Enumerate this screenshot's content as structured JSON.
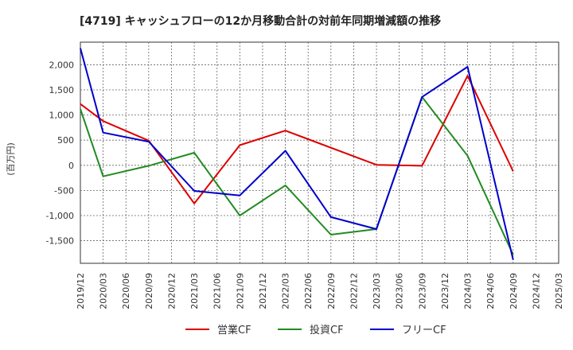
{
  "chart_data": {
    "type": "line",
    "title": "[4719]  キャッシュフローの12か月移動合計の対前年同期増減額の推移",
    "ylabel": "(百万円)",
    "xlabel": "",
    "ylim": [
      -1950,
      2450
    ],
    "yticks": [
      2000,
      1500,
      1000,
      500,
      0,
      -500,
      -1000,
      -1500
    ],
    "ytick_labels": [
      "2,000",
      "1,500",
      "1,000",
      "500",
      "0",
      "-500",
      "-1,000",
      "-1,500"
    ],
    "x_ticks": [
      "2019/12",
      "2020/03",
      "2020/06",
      "2020/09",
      "2020/12",
      "2021/03",
      "2021/06",
      "2021/09",
      "2021/12",
      "2022/03",
      "2022/06",
      "2022/09",
      "2022/12",
      "2023/03",
      "2023/06",
      "2023/09",
      "2023/12",
      "2024/03",
      "2024/06",
      "2024/09",
      "2024/12",
      "2025/03"
    ],
    "grid": true,
    "series": [
      {
        "name": "営業CF",
        "color": "#dd0000",
        "points": [
          [
            "2019/12",
            1220
          ],
          [
            "2020/03",
            880
          ],
          [
            "2020/09",
            490
          ],
          [
            "2021/03",
            -760
          ],
          [
            "2021/09",
            400
          ],
          [
            "2022/03",
            690
          ],
          [
            "2023/03",
            10
          ],
          [
            "2023/09",
            -10
          ],
          [
            "2024/03",
            1780
          ],
          [
            "2024/09",
            -120
          ]
        ]
      },
      {
        "name": "投資CF",
        "color": "#228b22",
        "points": [
          [
            "2019/12",
            1120
          ],
          [
            "2020/03",
            -220
          ],
          [
            "2020/09",
            -10
          ],
          [
            "2021/03",
            250
          ],
          [
            "2021/09",
            -1000
          ],
          [
            "2022/03",
            -400
          ],
          [
            "2022/09",
            -1380
          ],
          [
            "2023/03",
            -1270
          ],
          [
            "2023/09",
            1360
          ],
          [
            "2024/03",
            190
          ],
          [
            "2024/09",
            -1780
          ]
        ]
      },
      {
        "name": "フリーCF",
        "color": "#0000cc",
        "points": [
          [
            "2019/12",
            2330
          ],
          [
            "2020/03",
            650
          ],
          [
            "2020/09",
            470
          ],
          [
            "2021/03",
            -510
          ],
          [
            "2021/09",
            -600
          ],
          [
            "2022/03",
            290
          ],
          [
            "2022/09",
            -1030
          ],
          [
            "2023/03",
            -1270
          ],
          [
            "2023/09",
            1360
          ],
          [
            "2024/03",
            1960
          ],
          [
            "2024/09",
            -1880
          ]
        ]
      }
    ]
  }
}
